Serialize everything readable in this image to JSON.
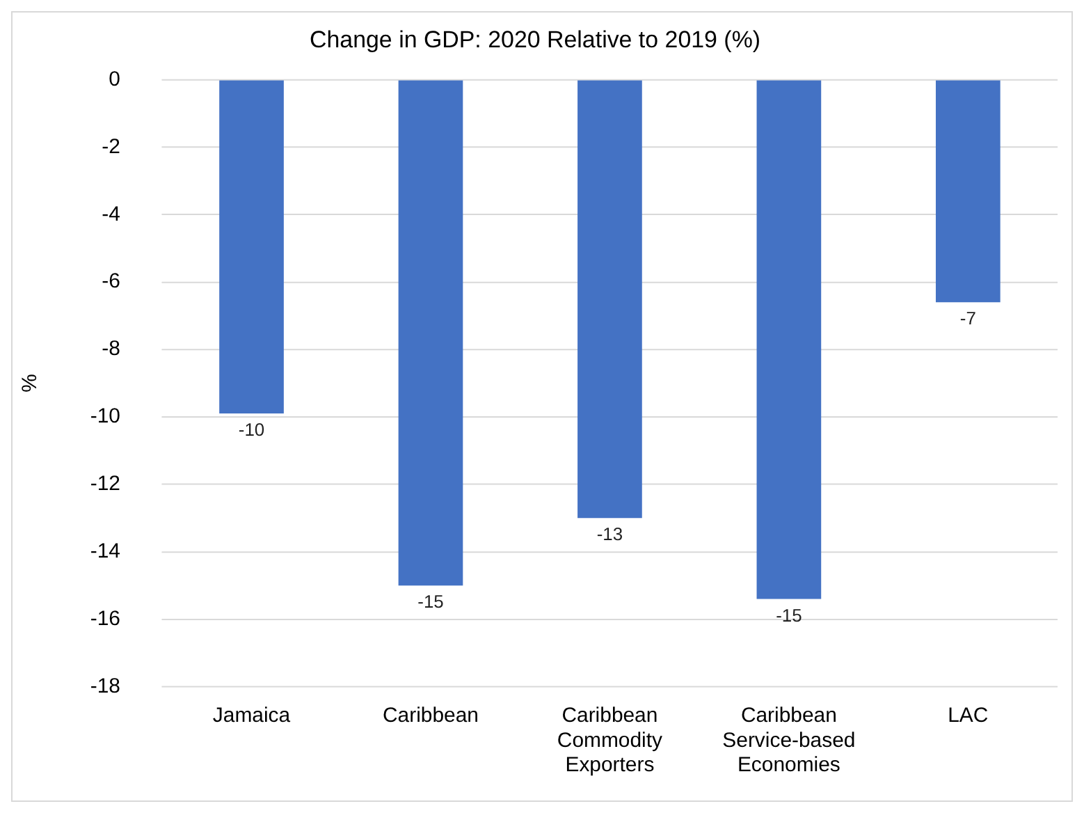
{
  "chart_data": {
    "type": "bar",
    "title": "Change in GDP: 2020 Relative to 2019 (%)",
    "ylabel": "%",
    "categories": [
      "Jamaica",
      "Caribbean",
      "Caribbean Commodity Exporters",
      "Caribbean Service-based Economies",
      "LAC"
    ],
    "values": [
      -9.9,
      -15.0,
      -13.0,
      -15.4,
      -6.6
    ],
    "value_labels": [
      "-10",
      "-15",
      "-13",
      "-15",
      "-7"
    ],
    "color": "#4472c4",
    "ylim": [
      -18,
      0
    ],
    "yticks": [
      -18,
      -16,
      -14,
      -12,
      -10,
      -8,
      -6,
      -4,
      -2,
      0
    ],
    "grid": "y",
    "legend": false
  }
}
